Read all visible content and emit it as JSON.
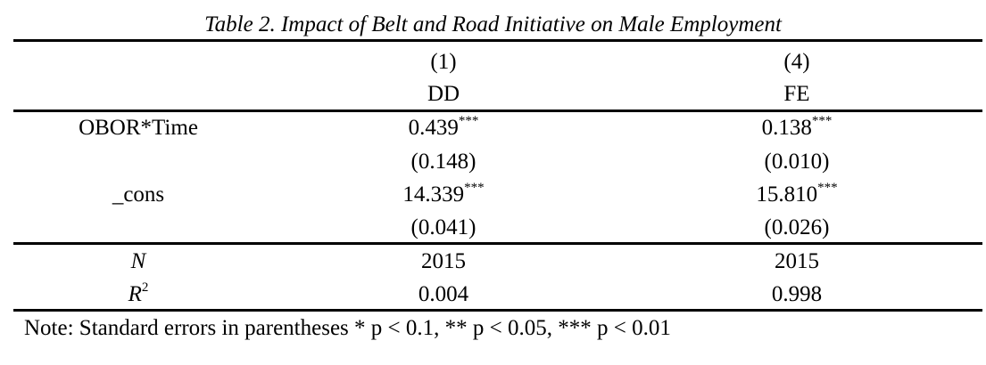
{
  "title": "Table 2. Impact of Belt and Road Initiative on Male Employment",
  "columns": [
    {
      "number": "(1)",
      "model": "DD"
    },
    {
      "number": "(4)",
      "model": "FE"
    }
  ],
  "rows": [
    {
      "label": "OBOR*Time",
      "values": [
        "0.439",
        "0.138"
      ],
      "stars": [
        "***",
        "***"
      ]
    },
    {
      "label": "",
      "values": [
        "(0.148)",
        "(0.010)"
      ],
      "stars": [
        "",
        ""
      ]
    },
    {
      "label": "_cons",
      "values": [
        "14.339",
        "15.810"
      ],
      "stars": [
        "***",
        "***"
      ]
    },
    {
      "label": "",
      "values": [
        "(0.041)",
        "(0.026)"
      ],
      "stars": [
        "",
        ""
      ]
    }
  ],
  "stats": [
    {
      "label": "N",
      "label_sup": "",
      "values": [
        "2015",
        "2015"
      ]
    },
    {
      "label": "R",
      "label_sup": "2",
      "values": [
        "0.004",
        "0.998"
      ]
    }
  ],
  "note": "Note: Standard errors in parentheses * p < 0.1, ** p < 0.05, *** p < 0.01"
}
